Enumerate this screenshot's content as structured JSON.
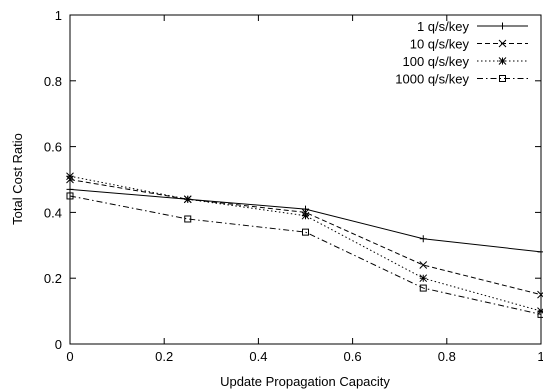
{
  "chart_data": {
    "type": "line",
    "title": "",
    "xlabel": "Update Propagation Capacity",
    "ylabel": "Total Cost Ratio",
    "xlim": [
      0,
      1
    ],
    "ylim": [
      0,
      1
    ],
    "xticks": [
      "0",
      "0.2",
      "0.4",
      "0.6",
      "0.8",
      "1"
    ],
    "yticks": [
      "0",
      "0.2",
      "0.4",
      "0.6",
      "0.8",
      "1"
    ],
    "grid": false,
    "legend": "top-right",
    "x": [
      0,
      0.25,
      0.5,
      0.75,
      1
    ],
    "series": [
      {
        "name": "1 q/s/key",
        "values": [
          0.47,
          0.44,
          0.41,
          0.32,
          0.28
        ],
        "marker": "plus",
        "dash": "solid"
      },
      {
        "name": "10 q/s/key",
        "values": [
          0.5,
          0.44,
          0.4,
          0.24,
          0.15
        ],
        "marker": "cross",
        "dash": "dashed"
      },
      {
        "name": "100 q/s/key",
        "values": [
          0.51,
          0.44,
          0.39,
          0.2,
          0.1
        ],
        "marker": "star",
        "dash": "dotted"
      },
      {
        "name": "1000 q/s/key",
        "values": [
          0.45,
          0.38,
          0.34,
          0.17,
          0.09
        ],
        "marker": "square",
        "dash": "dashdot"
      }
    ]
  }
}
